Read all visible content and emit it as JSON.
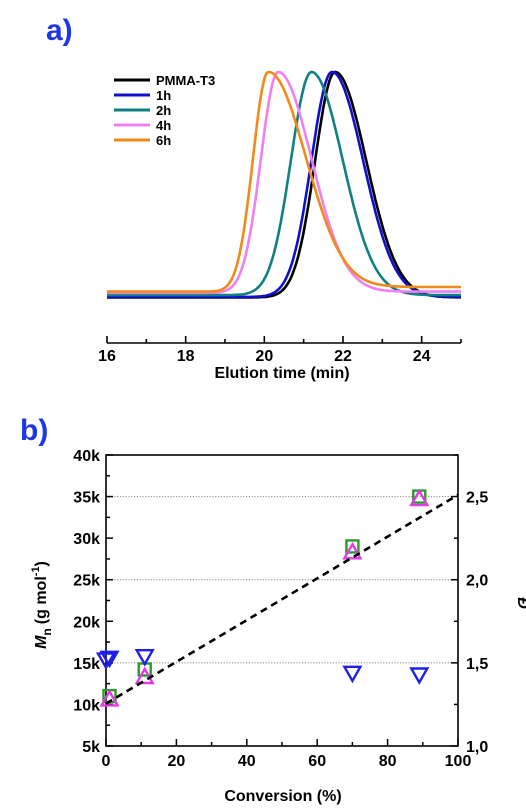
{
  "panels": {
    "a_label": "a)",
    "b_label": "b)"
  },
  "chart_data": [
    {
      "type": "line",
      "panel": "a)",
      "xlabel": "Elution time (min)",
      "ylabel": "",
      "xlim": [
        16,
        25
      ],
      "ylim": [
        0,
        1
      ],
      "xticks": [
        16,
        18,
        20,
        22,
        24
      ],
      "legend_position": "top-left",
      "series": [
        {
          "name": "PMMA-T3",
          "color": "#000000",
          "peak": 21.8,
          "width_left": 0.72,
          "width_right": 1.12,
          "baseline": 0.02,
          "tail": 0.0
        },
        {
          "name": "1h",
          "color": "#1010cc",
          "peak": 21.72,
          "width_left": 0.74,
          "width_right": 1.12,
          "baseline": 0.022,
          "tail": 0.0
        },
        {
          "name": "2h",
          "color": "#118080",
          "peak": 21.2,
          "width_left": 0.74,
          "width_right": 1.12,
          "baseline": 0.03,
          "tail": 0.0
        },
        {
          "name": "4h",
          "color": "#f07ff0",
          "peak": 20.35,
          "width_left": 0.62,
          "width_right": 1.2,
          "baseline": 0.04,
          "tail": 0.005
        },
        {
          "name": "6h",
          "color": "#f28a1a",
          "peak": 20.1,
          "width_left": 0.55,
          "width_right": 1.35,
          "baseline": 0.045,
          "tail": 0.02
        }
      ]
    },
    {
      "type": "scatter",
      "panel": "b)",
      "xlabel": "Conversion (%)",
      "ylabel_main": "M",
      "ylabel_sub": "n",
      "ylabel_units": "(g mol",
      "ylabel_exp": "-1",
      "ylabel_close": ")",
      "y2label": "Đ",
      "xlim": [
        0,
        100
      ],
      "ylim": [
        5000,
        40000
      ],
      "y2lim": [
        1.0,
        2.75
      ],
      "xticks": [
        0,
        20,
        40,
        60,
        80,
        100
      ],
      "yticks": [
        5000,
        10000,
        15000,
        20000,
        25000,
        30000,
        35000,
        40000
      ],
      "ytick_labels": [
        "5k",
        "10k",
        "15k",
        "20k",
        "25k",
        "30k",
        "35k",
        "40k"
      ],
      "y2ticks": [
        1.0,
        1.5,
        2.0,
        2.5
      ],
      "y2tick_labels": [
        "1,0",
        "1,5",
        "2,0",
        "2,5"
      ],
      "grid_y": true,
      "series": [
        {
          "marker": "square",
          "color": "#2a9a2a",
          "axis": "left",
          "x": [
            1,
            11,
            70,
            89
          ],
          "y": [
            11000,
            14200,
            29000,
            35000
          ]
        },
        {
          "marker": "triangle-up",
          "color": "#e23ae2",
          "axis": "left",
          "x": [
            1,
            11,
            70,
            89
          ],
          "y": [
            10600,
            13300,
            28300,
            34700
          ]
        },
        {
          "marker": "triangle-down",
          "color": "#1f1fe6",
          "axis": "right",
          "x": [
            0,
            1,
            11,
            70,
            89
          ],
          "y": [
            1.52,
            1.53,
            1.54,
            1.44,
            1.43
          ]
        },
        {
          "marker": "dashed-line",
          "color": "#000000",
          "axis": "left",
          "x": [
            0,
            100
          ],
          "y": [
            10100,
            35200
          ]
        }
      ]
    }
  ]
}
